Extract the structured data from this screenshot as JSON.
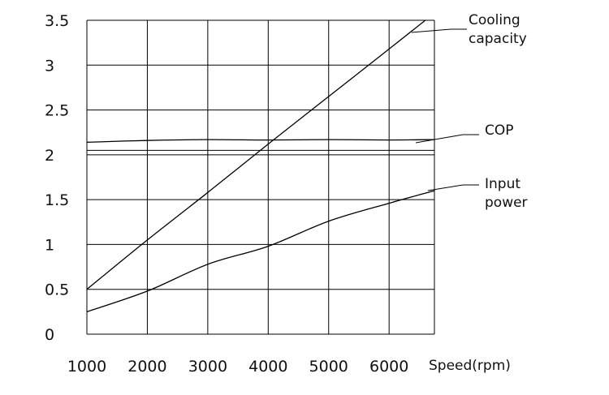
{
  "chart_data": {
    "type": "line",
    "title": "",
    "xlabel": "Speed(rpm)",
    "ylabel": "",
    "xlim": [
      1000,
      6750
    ],
    "ylim": [
      0,
      3.5
    ],
    "x_ticks": [
      "1000",
      "2000",
      "3000",
      "4000",
      "5000",
      "6000"
    ],
    "y_ticks": [
      "0",
      "0.5",
      "1",
      "1.5",
      "2",
      "2.5",
      "3",
      "3.5"
    ],
    "grid": true,
    "series": [
      {
        "name": "Cooling capacity",
        "label_lines": [
          "Cooling",
          "capacity"
        ],
        "points": [
          [
            1000,
            0.5
          ],
          [
            2000,
            1.05
          ],
          [
            3000,
            1.58
          ],
          [
            4000,
            2.12
          ],
          [
            5000,
            2.65
          ],
          [
            6000,
            3.18
          ],
          [
            6600,
            3.5
          ]
        ]
      },
      {
        "name": "COP",
        "label_lines": [
          "COP"
        ],
        "points": [
          [
            1000,
            2.14
          ],
          [
            2000,
            2.16
          ],
          [
            3000,
            2.17
          ],
          [
            4000,
            2.165
          ],
          [
            5000,
            2.17
          ],
          [
            6000,
            2.165
          ],
          [
            6750,
            2.17
          ]
        ]
      },
      {
        "name": "Input power",
        "label_lines": [
          "Input",
          "power"
        ],
        "points": [
          [
            1000,
            0.25
          ],
          [
            2000,
            0.48
          ],
          [
            3000,
            0.78
          ],
          [
            4000,
            0.98
          ],
          [
            5000,
            1.26
          ],
          [
            6000,
            1.46
          ],
          [
            6750,
            1.6
          ]
        ]
      }
    ],
    "reference_lines": [
      2.05
    ]
  }
}
